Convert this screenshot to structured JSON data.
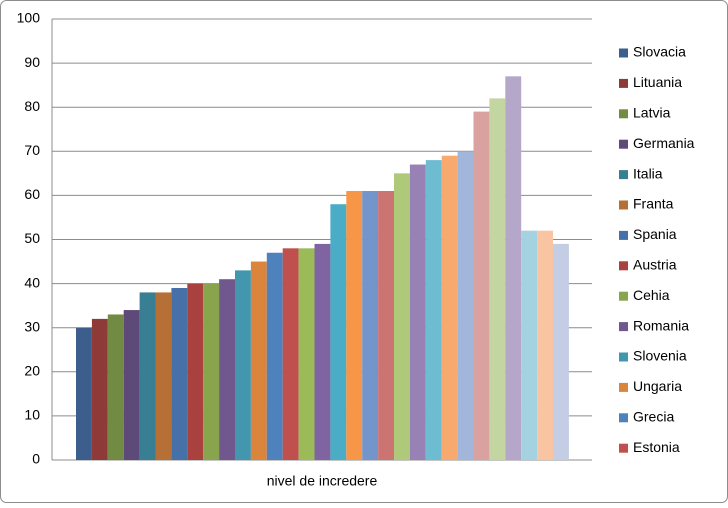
{
  "chart_data": {
    "type": "bar",
    "categories": [
      "nivel de incredere"
    ],
    "series": [
      {
        "name": "Slovacia",
        "color": "#3b5e8c",
        "values": [
          30
        ]
      },
      {
        "name": "Lituania",
        "color": "#8e3a38",
        "values": [
          32
        ]
      },
      {
        "name": "Latvia",
        "color": "#728b42",
        "values": [
          33
        ]
      },
      {
        "name": "Germania",
        "color": "#5e4a79",
        "values": [
          34
        ]
      },
      {
        "name": "Italia",
        "color": "#387f93",
        "values": [
          38
        ]
      },
      {
        "name": "Franta",
        "color": "#b66f34",
        "values": [
          38
        ]
      },
      {
        "name": "Spania",
        "color": "#4670a8",
        "values": [
          39
        ]
      },
      {
        "name": "Austria",
        "color": "#a9423f",
        "values": [
          40
        ]
      },
      {
        "name": "Cehia",
        "color": "#88a54d",
        "values": [
          40
        ]
      },
      {
        "name": "Romania",
        "color": "#70588f",
        "values": [
          41
        ]
      },
      {
        "name": "Slovenia",
        "color": "#4297ae",
        "values": [
          43
        ]
      },
      {
        "name": "Ungaria",
        "color": "#db843c",
        "values": [
          45
        ]
      },
      {
        "name": "Grecia",
        "color": "#4f81bd",
        "values": [
          47
        ]
      },
      {
        "name": "Estonia",
        "color": "#c0504d",
        "values": [
          48
        ]
      },
      {
        "color": "#9bbb59",
        "values": [
          48
        ]
      },
      {
        "color": "#8064a2",
        "values": [
          49
        ]
      },
      {
        "color": "#4bacc6",
        "values": [
          58
        ]
      },
      {
        "color": "#f79646",
        "values": [
          61
        ]
      },
      {
        "color": "#7495cc",
        "values": [
          61
        ]
      },
      {
        "color": "#cc7472",
        "values": [
          61
        ]
      },
      {
        "color": "#aec97a",
        "values": [
          65
        ]
      },
      {
        "color": "#9882b5",
        "values": [
          67
        ]
      },
      {
        "color": "#6ebcd1",
        "values": [
          68
        ]
      },
      {
        "color": "#f8aa6e",
        "values": [
          69
        ]
      },
      {
        "color": "#a2b5da",
        "values": [
          70
        ]
      },
      {
        "color": "#d9a19f",
        "values": [
          79
        ]
      },
      {
        "color": "#c3d6a2",
        "values": [
          82
        ]
      },
      {
        "color": "#b4a7c9",
        "values": [
          87
        ]
      },
      {
        "color": "#a5d2e0",
        "values": [
          52
        ]
      },
      {
        "color": "#f9c4a1",
        "values": [
          52
        ]
      },
      {
        "color": "#c4cde3",
        "values": [
          49
        ]
      }
    ],
    "ylim": [
      0,
      100
    ],
    "yticks": [
      0,
      10,
      20,
      30,
      40,
      50,
      60,
      70,
      80,
      90,
      100
    ],
    "grid": true,
    "legend": "right"
  }
}
